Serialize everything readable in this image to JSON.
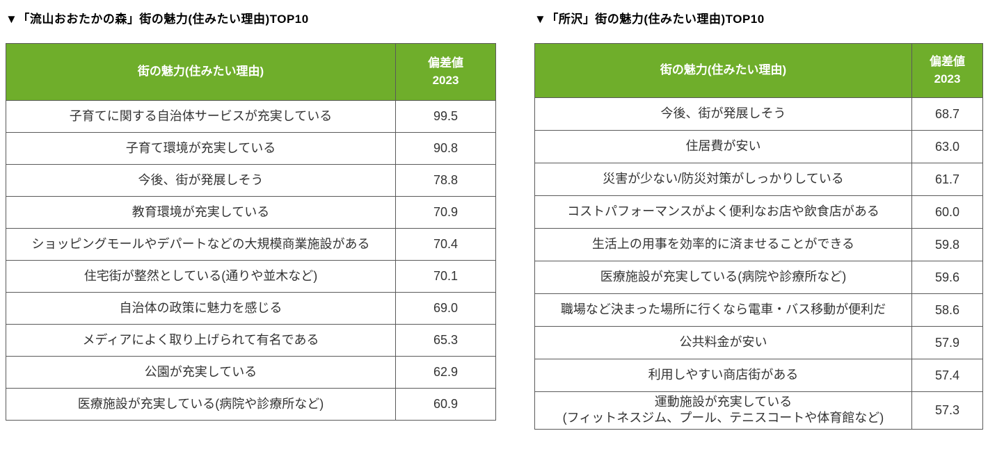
{
  "colors": {
    "header_background": "#6FAE2B",
    "header_text": "#ffffff",
    "border": "#595959",
    "cell_text": "#333333",
    "title_text": "#000000",
    "page_background": "#ffffff"
  },
  "tables": [
    {
      "title": "▼「流山おおたかの森」街の魅力(住みたい理由)TOP10",
      "header": {
        "reason": "街の魅力(住みたい理由)",
        "score": "偏差値\n2023"
      },
      "rows": [
        {
          "reason": "子育てに関する自治体サービスが充実している",
          "score": "99.5"
        },
        {
          "reason": "子育て環境が充実している",
          "score": "90.8"
        },
        {
          "reason": "今後、街が発展しそう",
          "score": "78.8"
        },
        {
          "reason": "教育環境が充実している",
          "score": "70.9"
        },
        {
          "reason": "ショッピングモールやデパートなどの大規模商業施設がある",
          "score": "70.4"
        },
        {
          "reason": "住宅街が整然としている(通りや並木など)",
          "score": "70.1"
        },
        {
          "reason": "自治体の政策に魅力を感じる",
          "score": "69.0"
        },
        {
          "reason": "メディアによく取り上げられて有名である",
          "score": "65.3"
        },
        {
          "reason": "公園が充実している",
          "score": "62.9"
        },
        {
          "reason": "医療施設が充実している(病院や診療所など)",
          "score": "60.9"
        }
      ]
    },
    {
      "title": "▼「所沢」街の魅力(住みたい理由)TOP10",
      "header": {
        "reason": "街の魅力(住みたい理由)",
        "score": "偏差値\n2023"
      },
      "rows": [
        {
          "reason": "今後、街が発展しそう",
          "score": "68.7"
        },
        {
          "reason": "住居費が安い",
          "score": "63.0"
        },
        {
          "reason": "災害が少ない/防災対策がしっかりしている",
          "score": "61.7"
        },
        {
          "reason": "コストパフォーマンスがよく便利なお店や飲食店がある",
          "score": "60.0"
        },
        {
          "reason": "生活上の用事を効率的に済ませることができる",
          "score": "59.8"
        },
        {
          "reason": "医療施設が充実している(病院や診療所など)",
          "score": "59.6"
        },
        {
          "reason": "職場など決まった場所に行くなら電車・バス移動が便利だ",
          "score": "58.6"
        },
        {
          "reason": "公共料金が安い",
          "score": "57.9"
        },
        {
          "reason": "利用しやすい商店街がある",
          "score": "57.4"
        },
        {
          "reason": "運動施設が充実している\n(フィットネスジム、プール、テニスコートや体育館など)",
          "score": "57.3"
        }
      ]
    }
  ]
}
